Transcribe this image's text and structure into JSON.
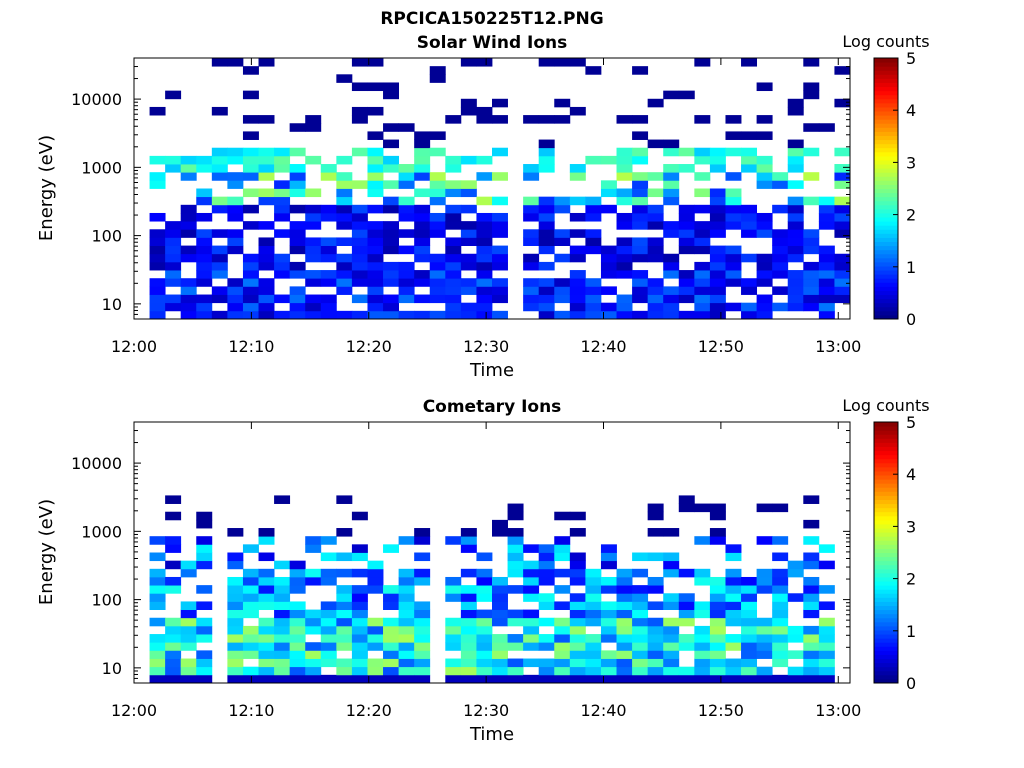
{
  "figure": {
    "title": "RPCICA150225T12.PNG"
  },
  "chart_data": [
    {
      "type": "heatmap",
      "title": "Solar Wind Ions",
      "xlabel": "Time",
      "ylabel": "Energy (eV)",
      "x_ticks": [
        "12:00",
        "12:10",
        "12:20",
        "12:30",
        "12:40",
        "12:50",
        "13:00"
      ],
      "y_ticks": [
        "10",
        "100",
        "1000",
        "10000"
      ],
      "y_scale": "log",
      "ylim": [
        6,
        40000
      ],
      "xlim_minutes": [
        0,
        61
      ],
      "colorbar": {
        "label": "Log counts",
        "ticks": [
          "0",
          "1",
          "2",
          "3",
          "4",
          "5"
        ],
        "range": [
          0,
          5
        ],
        "colormap": "jet"
      },
      "features": {
        "high_energy_bands": [
          1300,
          600
        ],
        "peak_value_log_counts": 3.2,
        "low_energy_floor_value": 0.3
      }
    },
    {
      "type": "heatmap",
      "title": "Cometary Ions",
      "xlabel": "Time",
      "ylabel": "Energy (eV)",
      "x_ticks": [
        "12:00",
        "12:10",
        "12:20",
        "12:30",
        "12:40",
        "12:50",
        "13:00"
      ],
      "y_ticks": [
        "10",
        "100",
        "1000",
        "10000"
      ],
      "y_scale": "log",
      "ylim": [
        6,
        40000
      ],
      "xlim_minutes": [
        0,
        61
      ],
      "colorbar": {
        "label": "Log counts",
        "ticks": [
          "0",
          "1",
          "2",
          "3",
          "4",
          "5"
        ],
        "range": [
          0,
          5
        ],
        "colormap": "jet"
      },
      "features": {
        "low_energy_band_upper": 60,
        "peak_value_log_counts": 3.0
      }
    }
  ]
}
